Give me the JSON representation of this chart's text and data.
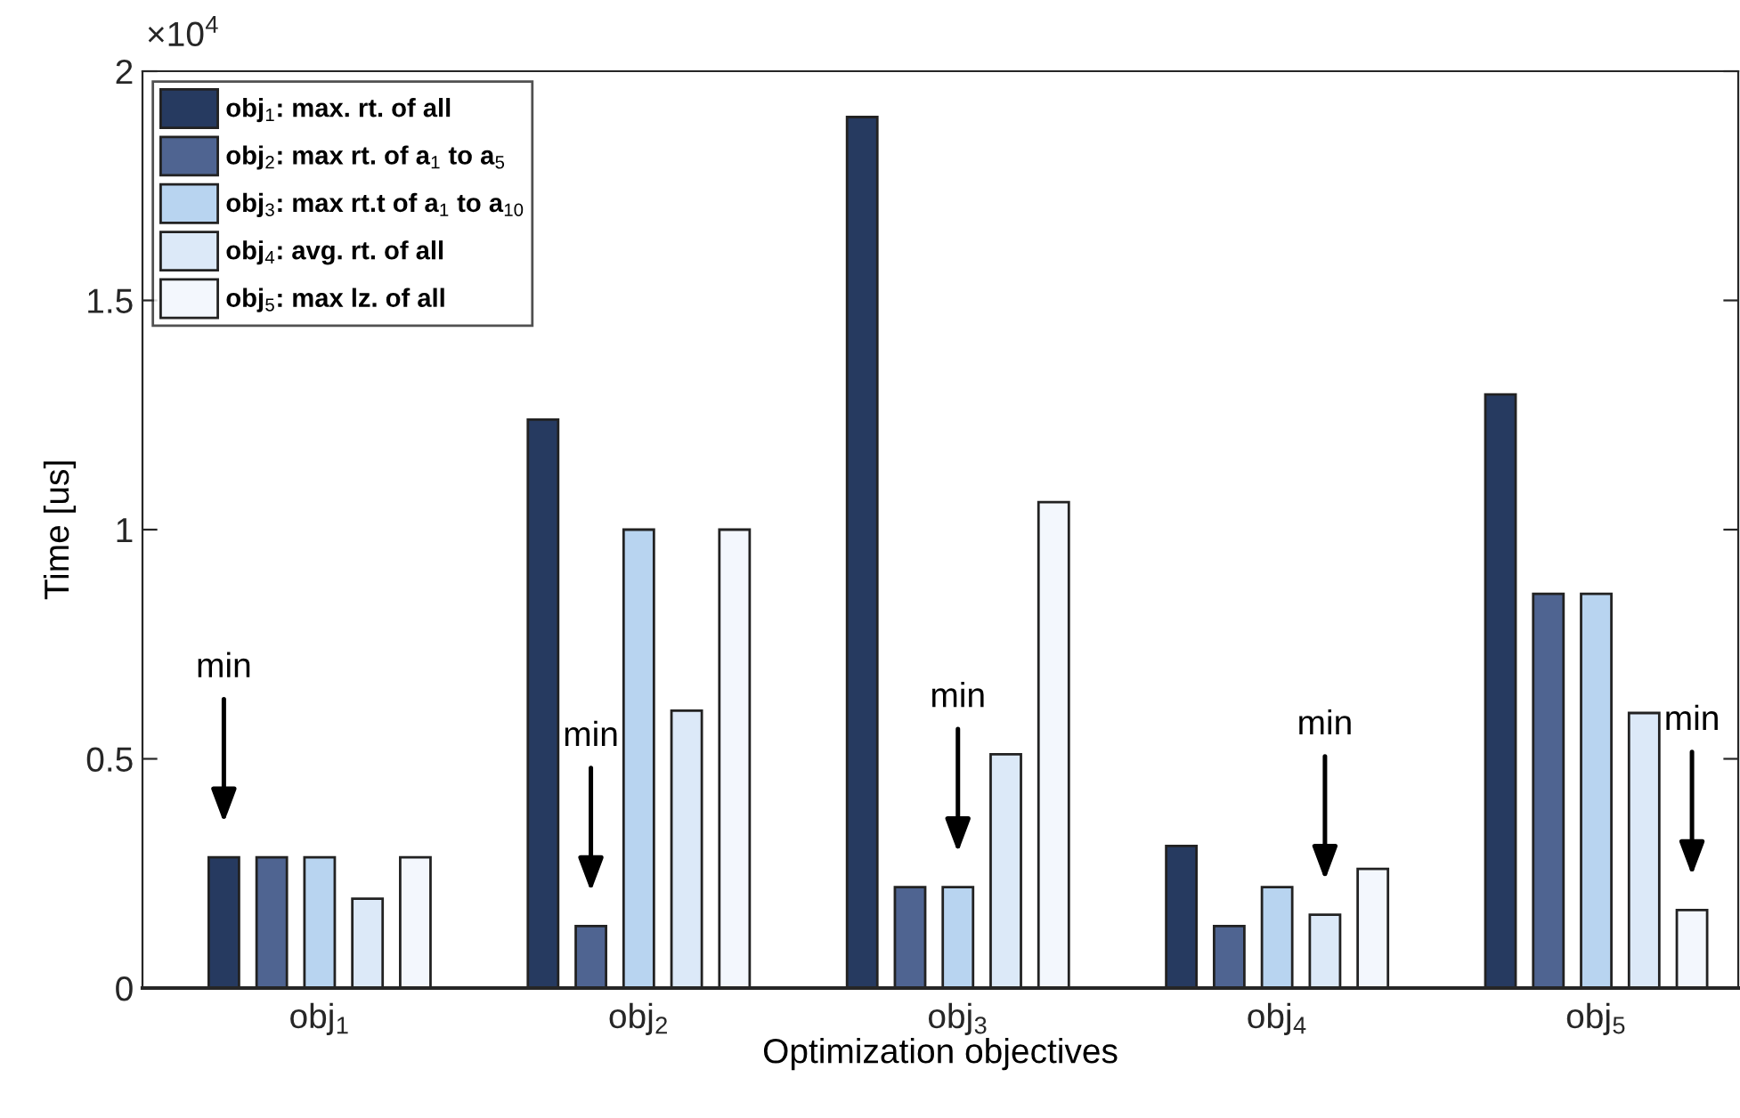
{
  "chart_data": {
    "type": "bar",
    "xlabel": "Optimization objectives",
    "ylabel": "Time [us]",
    "categories": [
      "obj$_{1}$",
      "obj$_{2}$",
      "obj$_{3}$",
      "obj$_{4}$",
      "obj$_{5}$"
    ],
    "series": [
      {
        "name": "obj$_{1}$: max. rt. of all",
        "color": "#263a60",
        "values": [
          0.285,
          1.24,
          1.9,
          0.31,
          1.295
        ]
      },
      {
        "name": "obj$_{2}$: max rt. of a$_{1}$ to a$_{5}$",
        "color": "#4f6491",
        "values": [
          0.285,
          0.135,
          0.22,
          0.135,
          0.86
        ]
      },
      {
        "name": "obj$_{3}$: max rt.t of a$_{1}$ to a$_{10}$",
        "color": "#b8d4f0",
        "values": [
          0.285,
          1.0,
          0.22,
          0.22,
          0.86
        ]
      },
      {
        "name": "obj$_{4}$: avg. rt. of all",
        "color": "#dce9f8",
        "values": [
          0.195,
          0.605,
          0.51,
          0.16,
          0.6
        ]
      },
      {
        "name": "obj$_{5}$: max lz. of all",
        "color": "#f3f7fd",
        "values": [
          0.285,
          1.0,
          1.06,
          0.26,
          0.17
        ]
      }
    ],
    "ylim": [
      0,
      2
    ],
    "yticks": [
      0,
      0.5,
      1,
      1.5,
      2
    ],
    "annotations": [
      "×10$^{4}$",
      "min",
      "min",
      "min",
      "min",
      "min"
    ],
    "legend": "top left",
    "grid": false
  }
}
